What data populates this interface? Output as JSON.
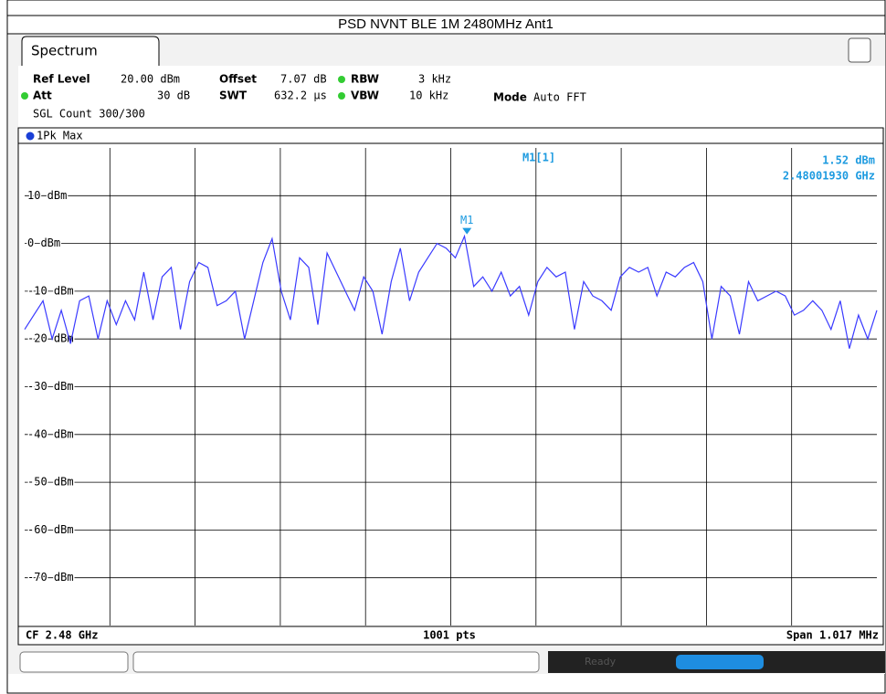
{
  "title": "PSD NVNT BLE 1M 2480MHz Ant1",
  "tab": "Spectrum",
  "settings": {
    "ref_level_label": "Ref Level",
    "ref_level": "20.00 dBm",
    "offset_label": "Offset",
    "offset": "7.07 dB",
    "rbw_label": "RBW",
    "rbw": "3 kHz",
    "att_label": "Att",
    "att": "30 dB",
    "swt_label": "SWT",
    "swt": "632.2 µs",
    "vbw_label": "VBW",
    "vbw": "10 kHz",
    "mode_label": "Mode",
    "mode": "Auto FFT",
    "sgl_count": "SGL Count 300/300"
  },
  "trace_label": "1Pk Max",
  "footer": {
    "cf": "CF 2.48 GHz",
    "pts": "1001 pts",
    "span": "Span 1.017 MHz"
  },
  "status": "Ready",
  "chart_data": {
    "type": "line",
    "series": [
      {
        "name": "1Pk Max",
        "color": "#3a3aff",
        "values": [
          -18,
          -15,
          -12,
          -20,
          -14,
          -21,
          -12,
          -11,
          -20,
          -12,
          -17,
          -12,
          -16,
          -6,
          -16,
          -7,
          -5,
          -18,
          -8,
          -4,
          -5,
          -13,
          -12,
          -10,
          -20,
          -12,
          -4,
          1,
          -10,
          -16,
          -3,
          -5,
          -17,
          -2,
          -6,
          -10,
          -14,
          -7,
          -10,
          -19,
          -8,
          -1,
          -12,
          -6,
          -3,
          0,
          -1,
          -3,
          1.52,
          -9,
          -7,
          -10,
          -6,
          -11,
          -9,
          -15,
          -8,
          -5,
          -7,
          -6,
          -18,
          -8,
          -11,
          -12,
          -14,
          -7,
          -5,
          -6,
          -5,
          -11,
          -6,
          -7,
          -5,
          -4,
          -8,
          -20,
          -9,
          -11,
          -19,
          -8,
          -12,
          -11,
          -10,
          -11,
          -15,
          -14,
          -12,
          -14,
          -18,
          -12,
          -22,
          -15,
          -20,
          -14
        ]
      }
    ],
    "xlim": [
      2.4794915,
      2.4805085
    ],
    "ylim": [
      -80,
      20
    ],
    "yticks": [
      {
        "value": 10,
        "label": "10 dBm"
      },
      {
        "value": 0,
        "label": "0 dBm"
      },
      {
        "value": -10,
        "label": "-10 dBm"
      },
      {
        "value": -20,
        "label": "-20 dBm"
      },
      {
        "value": -30,
        "label": "-30 dBm"
      },
      {
        "value": -40,
        "label": "-40 dBm"
      },
      {
        "value": -50,
        "label": "-50 dBm"
      },
      {
        "value": -60,
        "label": "-60 dBm"
      },
      {
        "value": -70,
        "label": "-70 dBm"
      }
    ],
    "grid": true,
    "marker": {
      "name": "M1",
      "title": "M1[1]",
      "x": 2.4800193,
      "x_label": "2.48001930 GHz",
      "value": 1.52,
      "value_label": "1.52 dBm"
    }
  }
}
